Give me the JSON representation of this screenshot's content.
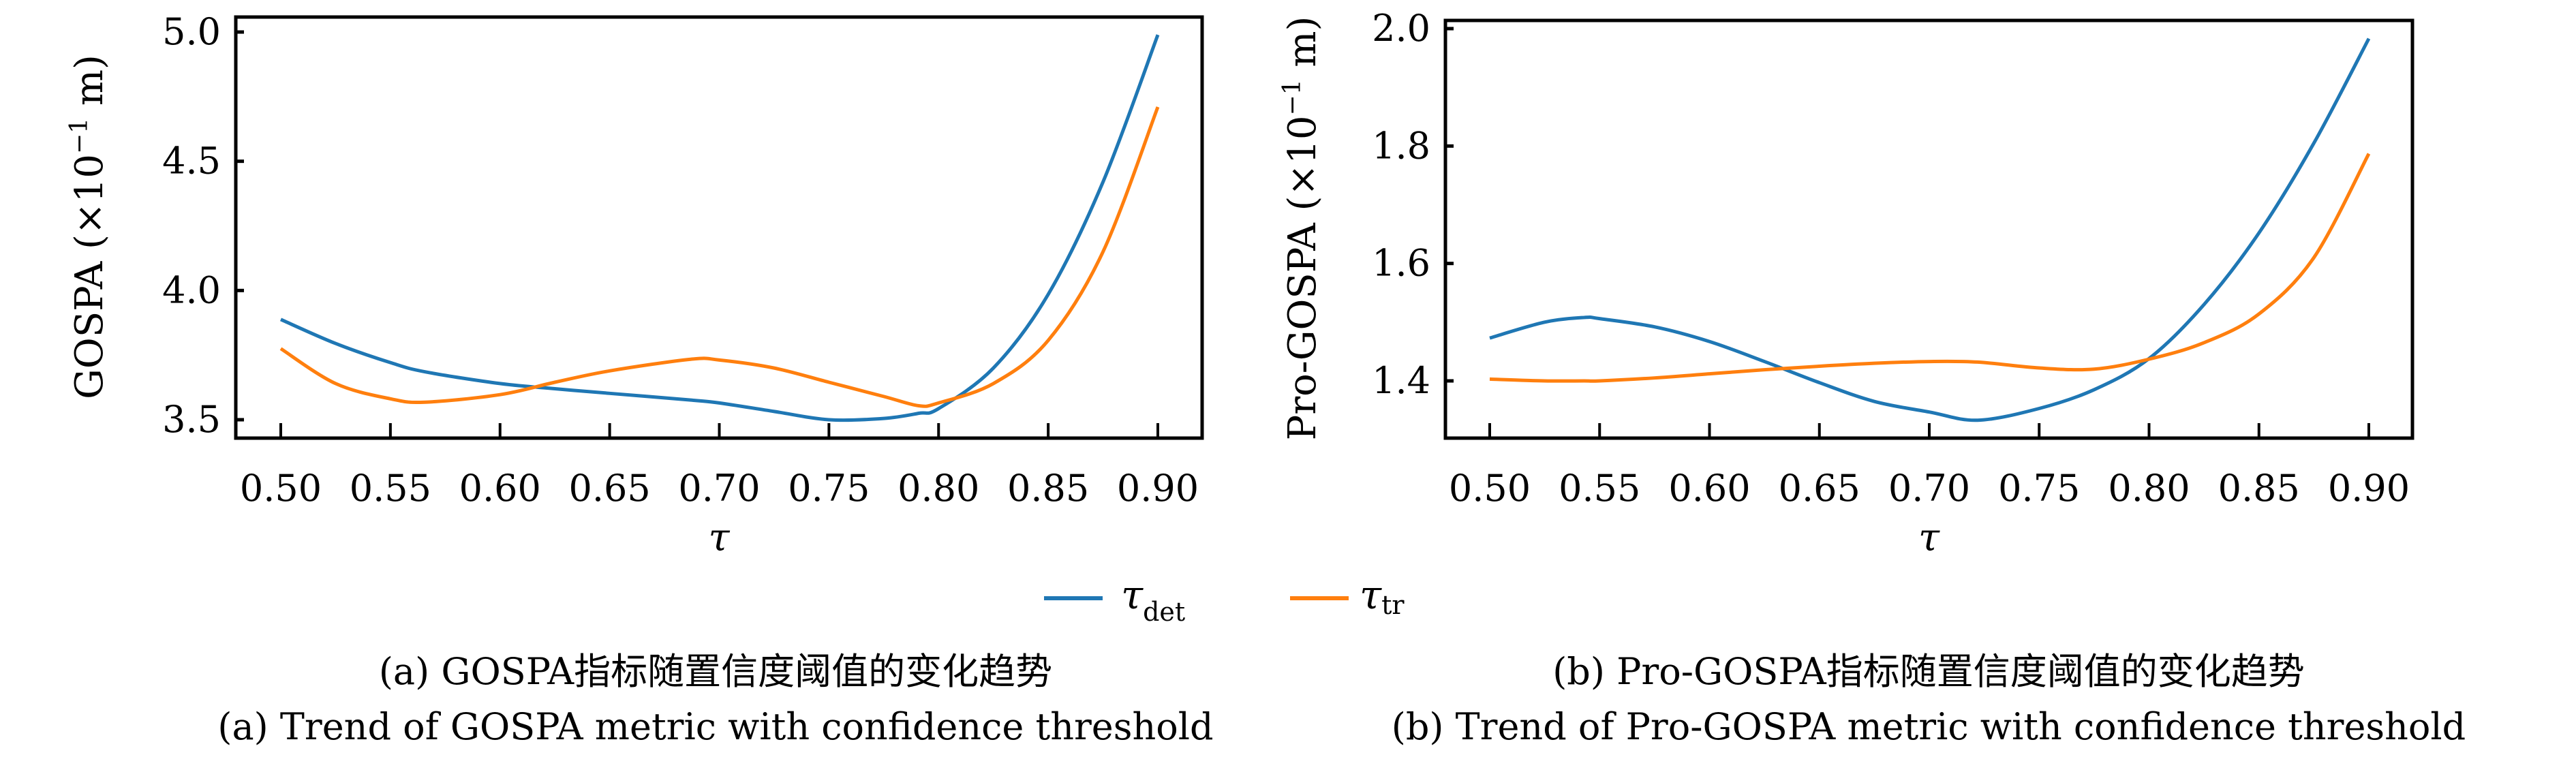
{
  "chart_data": [
    {
      "type": "line",
      "panel": "a",
      "title": "",
      "xlabel": "τ",
      "ylabel": "GOSPA (×10⁻¹ m)",
      "ylabel_parts": {
        "main": "GOSPA (×10",
        "sup": "−1",
        "tail": " m)"
      },
      "xlim": [
        0.5,
        0.9
      ],
      "ylim": [
        3.5,
        5.0
      ],
      "xticks": [
        0.5,
        0.55,
        0.6,
        0.65,
        0.7,
        0.75,
        0.8,
        0.85,
        0.9
      ],
      "xtick_labels": [
        "0.50",
        "0.55",
        "0.60",
        "0.65",
        "0.70",
        "0.75",
        "0.80",
        "0.85",
        "0.90"
      ],
      "yticks": [
        3.5,
        4.0,
        4.5,
        5.0
      ],
      "ytick_labels": [
        "3.5",
        "4.0",
        "4.5",
        "5.0"
      ],
      "grid": false,
      "x": [
        0.5,
        0.525,
        0.55,
        0.566,
        0.6,
        0.625,
        0.65,
        0.687,
        0.7,
        0.725,
        0.75,
        0.775,
        0.791,
        0.8,
        0.825,
        0.85,
        0.875,
        0.9
      ],
      "series": [
        {
          "name": "τ_det",
          "color": "#1f77b4",
          "values": [
            3.888,
            3.795,
            3.721,
            3.685,
            3.64,
            3.62,
            3.602,
            3.576,
            3.565,
            3.532,
            3.5,
            3.505,
            3.525,
            3.543,
            3.7,
            3.985,
            4.42,
            4.989
          ]
        },
        {
          "name": "τ_tr",
          "color": "#ff7f0e",
          "values": [
            3.775,
            3.64,
            3.581,
            3.568,
            3.597,
            3.645,
            3.689,
            3.734,
            3.731,
            3.7,
            3.645,
            3.59,
            3.554,
            3.565,
            3.64,
            3.807,
            4.15,
            4.71
          ]
        }
      ],
      "caption_cn": "(a) GOSPA指标随置信度阈值的变化趋势",
      "caption_en": "(a) Trend of GOSPA metric with confidence threshold"
    },
    {
      "type": "line",
      "panel": "b",
      "title": "",
      "xlabel": "τ",
      "ylabel": "Pro-GOSPA (×10⁻¹ m)",
      "ylabel_parts": {
        "main": "Pro-GOSPA (×10",
        "sup": "−1",
        "tail": " m)"
      },
      "xlim": [
        0.5,
        0.9
      ],
      "ylim": [
        1.33,
        2.0
      ],
      "xticks": [
        0.5,
        0.55,
        0.6,
        0.65,
        0.7,
        0.75,
        0.8,
        0.85,
        0.9
      ],
      "xtick_labels": [
        "0.50",
        "0.55",
        "0.60",
        "0.65",
        "0.70",
        "0.75",
        "0.80",
        "0.85",
        "0.90"
      ],
      "yticks": [
        1.4,
        1.6,
        1.8,
        2.0
      ],
      "ytick_labels": [
        "1.4",
        "1.6",
        "1.8",
        "2.0"
      ],
      "grid": false,
      "x": [
        0.5,
        0.525,
        0.543,
        0.55,
        0.575,
        0.6,
        0.625,
        0.65,
        0.675,
        0.7,
        0.722,
        0.75,
        0.775,
        0.8,
        0.825,
        0.85,
        0.875,
        0.9
      ],
      "series": [
        {
          "name": "τ_det",
          "color": "#1f77b4",
          "values": [
            1.473,
            1.5,
            1.508,
            1.506,
            1.492,
            1.467,
            1.433,
            1.397,
            1.365,
            1.347,
            1.333,
            1.353,
            1.385,
            1.438,
            1.53,
            1.652,
            1.805,
            1.983
          ]
        },
        {
          "name": "τ_tr",
          "color": "#ff7f0e",
          "values": [
            1.403,
            1.4,
            1.4,
            1.4,
            1.405,
            1.412,
            1.419,
            1.425,
            1.43,
            1.433,
            1.432,
            1.422,
            1.42,
            1.437,
            1.465,
            1.514,
            1.61,
            1.787
          ]
        }
      ],
      "caption_cn": "(b) Pro-GOSPA指标随置信度阈值的变化趋势",
      "caption_en": "(b) Trend of Pro-GOSPA metric with confidence threshold"
    }
  ],
  "legend": {
    "placement": "bottom-center",
    "items": [
      {
        "symbol": "τ",
        "sub": "det",
        "color": "#1f77b4"
      },
      {
        "symbol": "τ",
        "sub": "tr",
        "color": "#ff7f0e"
      }
    ]
  }
}
